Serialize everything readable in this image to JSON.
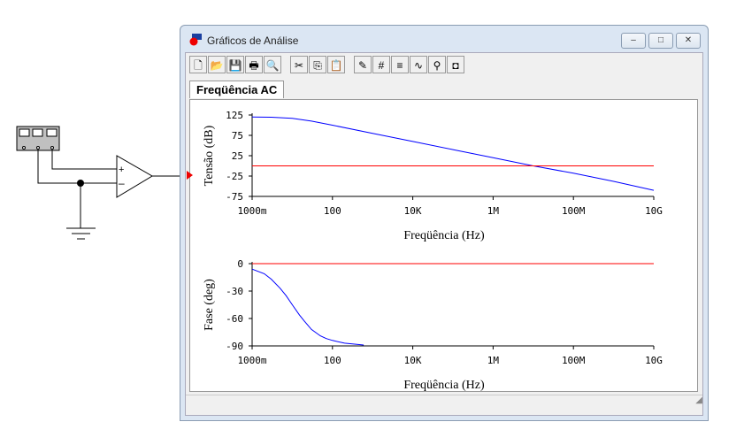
{
  "window": {
    "title": "Gráficos de Análise",
    "minimize": "–",
    "maximize": "□",
    "close": "✕"
  },
  "toolbar": [
    {
      "name": "new",
      "glyph": "🗋"
    },
    {
      "name": "open",
      "glyph": "📂"
    },
    {
      "name": "save",
      "glyph": "💾"
    },
    {
      "name": "print",
      "glyph": "🖶"
    },
    {
      "name": "print-preview",
      "glyph": "🔍"
    },
    {
      "sep": true
    },
    {
      "name": "cut",
      "glyph": "✂"
    },
    {
      "name": "copy",
      "glyph": "⎘"
    },
    {
      "name": "paste",
      "glyph": "📋"
    },
    {
      "sep": true
    },
    {
      "name": "properties",
      "glyph": "✎"
    },
    {
      "name": "grid",
      "glyph": "#"
    },
    {
      "name": "legend",
      "glyph": "≡"
    },
    {
      "name": "cursors",
      "glyph": "∿"
    },
    {
      "name": "zoom",
      "glyph": "⚲"
    },
    {
      "name": "restore",
      "glyph": "◘"
    }
  ],
  "tab": {
    "label": "Freqüência AC"
  },
  "colors": {
    "trace": "#0000ff",
    "reference": "#ff0000"
  },
  "chart_data": [
    {
      "type": "line",
      "ylabel": "Tensão (dB)",
      "xlabel": "Freqüência (Hz)",
      "xscale": "log",
      "xlim": [
        1,
        10000000000.0
      ],
      "ylim": [
        -75,
        125
      ],
      "xticks": [
        "1000m",
        "100",
        "10K",
        "1M",
        "100M",
        "10G"
      ],
      "yticks": [
        "125",
        "75",
        "25",
        "-25",
        "-75"
      ],
      "series": [
        {
          "name": "magnitude",
          "x": [
            1,
            3,
            10,
            30,
            100,
            1000.0,
            10000.0,
            100000.0,
            1000000.0,
            10000000.0,
            100000000.0,
            1000000000.0,
            10000000000.0
          ],
          "y": [
            120,
            119.5,
            117,
            110,
            100,
            80,
            60,
            40,
            20,
            0,
            -18,
            -38,
            -60
          ]
        },
        {
          "name": "reference",
          "x": [
            1,
            10000000000.0
          ],
          "y": [
            0,
            0
          ]
        }
      ]
    },
    {
      "type": "line",
      "ylabel": "Fase (deg)",
      "xlabel": "Freqüência (Hz)",
      "xscale": "log",
      "xlim": [
        1,
        10000000000.0
      ],
      "ylim": [
        -90,
        0
      ],
      "xticks": [
        "1000m",
        "100",
        "10K",
        "1M",
        "100M",
        "10G"
      ],
      "yticks": [
        "0",
        "-30",
        "-60",
        "-90"
      ],
      "series": [
        {
          "name": "phase",
          "x": [
            1,
            2,
            3,
            5,
            7,
            10,
            15,
            20,
            30,
            50,
            70,
            100,
            200,
            600
          ],
          "y": [
            -6,
            -11,
            -17,
            -27,
            -35,
            -45,
            -56,
            -63,
            -72,
            -79,
            -82,
            -84,
            -87,
            -89
          ]
        },
        {
          "name": "reference",
          "x": [
            1,
            10000000000.0
          ],
          "y": [
            0,
            0
          ]
        }
      ]
    }
  ]
}
